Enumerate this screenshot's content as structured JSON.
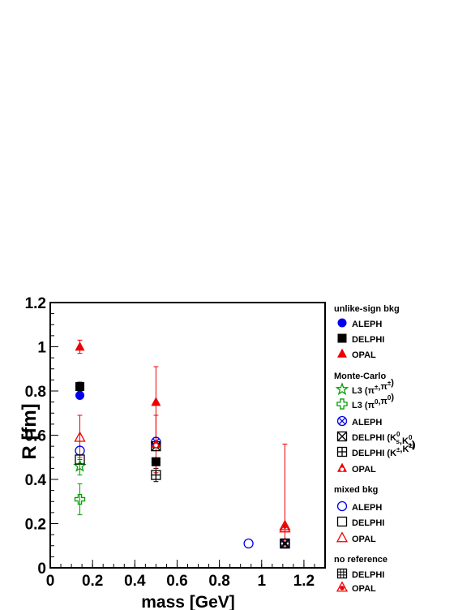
{
  "chart_data": {
    "type": "scatter",
    "title": "",
    "xlabel": "mass [GeV]",
    "ylabel": "R [fm]",
    "xlim": [
      0,
      1.3
    ],
    "ylim": [
      0,
      1.2
    ],
    "x_ticks": [
      {
        "value": 0,
        "label": "0"
      },
      {
        "value": 0.2,
        "label": "0.2"
      },
      {
        "value": 0.4,
        "label": "0.4"
      },
      {
        "value": 0.6,
        "label": "0.6"
      },
      {
        "value": 0.8,
        "label": "0.8"
      },
      {
        "value": 1.0,
        "label": "1"
      },
      {
        "value": 1.2,
        "label": "1.2"
      }
    ],
    "y_ticks": [
      {
        "value": 0,
        "label": "0"
      },
      {
        "value": 0.2,
        "label": "0.2"
      },
      {
        "value": 0.4,
        "label": "0.4"
      },
      {
        "value": 0.6,
        "label": "0.6"
      },
      {
        "value": 0.8,
        "label": "0.8"
      },
      {
        "value": 1.0,
        "label": "1"
      },
      {
        "value": 1.2,
        "label": "1.2"
      }
    ],
    "grid": false,
    "legend_position": "right",
    "legend_groups": [
      {
        "heading": "unlike-sign bkg",
        "entries": [
          {
            "label": "ALEPH",
            "marker": "filled-circle",
            "color": "#0000ee"
          },
          {
            "label": "DELPHI",
            "marker": "filled-square",
            "color": "#000000"
          },
          {
            "label": "OPAL",
            "marker": "filled-triangle",
            "color": "#ee0000"
          }
        ]
      },
      {
        "heading": "Monte-Carlo",
        "entries": [
          {
            "label": "L3 (π±,π±)",
            "marker": "open-star",
            "color": "#00a000"
          },
          {
            "label": "L3 (π0,π0)",
            "marker": "open-cross",
            "color": "#00a000"
          },
          {
            "label": "ALEPH",
            "marker": "circle-x",
            "color": "#0000ee"
          },
          {
            "label": "DELPHI (K0s,K0s)",
            "marker": "square-x",
            "color": "#000000"
          },
          {
            "label": "DELPHI (K±,K±)",
            "marker": "square-plus",
            "color": "#000000"
          },
          {
            "label": "OPAL",
            "marker": "triangle-circle",
            "color": "#ee0000"
          }
        ]
      },
      {
        "heading": "mixed bkg",
        "entries": [
          {
            "label": "ALEPH",
            "marker": "open-circle",
            "color": "#0000ee"
          },
          {
            "label": "DELPHI",
            "marker": "open-square",
            "color": "#000000"
          },
          {
            "label": "OPAL",
            "marker": "open-triangle",
            "color": "#ee0000"
          }
        ]
      },
      {
        "heading": "no reference",
        "entries": [
          {
            "label": "DELPHI",
            "marker": "square-hash",
            "color": "#000000"
          },
          {
            "label": "OPAL",
            "marker": "triangle-dot",
            "color": "#ee0000"
          }
        ]
      }
    ],
    "series": [
      {
        "name": "unlike-sign bkg ALEPH",
        "marker": "filled-circle",
        "color": "#0000ee",
        "points": [
          {
            "x": 0.14,
            "y": 0.78
          }
        ]
      },
      {
        "name": "unlike-sign bkg DELPHI",
        "marker": "filled-square",
        "color": "#000000",
        "points": [
          {
            "x": 0.14,
            "y": 0.82,
            "err": 0.02
          },
          {
            "x": 0.5,
            "y": 0.48
          }
        ]
      },
      {
        "name": "unlike-sign bkg OPAL",
        "marker": "filled-triangle",
        "color": "#ee0000",
        "points": [
          {
            "x": 0.14,
            "y": 1.0,
            "err": 0.03
          },
          {
            "x": 0.5,
            "y": 0.75,
            "err": 0.16
          }
        ]
      },
      {
        "name": "Monte-Carlo L3 (π±,π±)",
        "marker": "open-star",
        "color": "#00a000",
        "points": [
          {
            "x": 0.14,
            "y": 0.46,
            "err": 0.04
          }
        ]
      },
      {
        "name": "Monte-Carlo L3 (π0,π0)",
        "marker": "open-cross",
        "color": "#00a000",
        "points": [
          {
            "x": 0.14,
            "y": 0.31,
            "err": 0.07
          }
        ]
      },
      {
        "name": "Monte-Carlo ALEPH",
        "marker": "circle-x",
        "color": "#0000ee",
        "points": [
          {
            "x": 0.5,
            "y": 0.57
          },
          {
            "x": 1.11,
            "y": 0.11
          }
        ]
      },
      {
        "name": "Monte-Carlo DELPHI (K0s,K0s)",
        "marker": "square-x",
        "color": "#000000",
        "points": [
          {
            "x": 0.5,
            "y": 0.55
          },
          {
            "x": 1.11,
            "y": 0.11
          }
        ]
      },
      {
        "name": "Monte-Carlo DELPHI (K±,K±)",
        "marker": "square-plus",
        "color": "#000000",
        "points": [
          {
            "x": 0.5,
            "y": 0.42,
            "err": 0.03
          }
        ]
      },
      {
        "name": "Monte-Carlo OPAL",
        "marker": "triangle-circle",
        "color": "#ee0000",
        "points": [
          {
            "x": 0.5,
            "y": 0.56,
            "err": 0.13
          }
        ]
      },
      {
        "name": "mixed bkg ALEPH",
        "marker": "open-circle",
        "color": "#0000ee",
        "points": [
          {
            "x": 0.14,
            "y": 0.53
          },
          {
            "x": 0.938,
            "y": 0.11
          }
        ]
      },
      {
        "name": "mixed bkg DELPHI",
        "marker": "open-square",
        "color": "#000000",
        "points": [
          {
            "x": 0.14,
            "y": 0.49
          }
        ]
      },
      {
        "name": "mixed bkg OPAL",
        "marker": "open-triangle",
        "color": "#ee0000",
        "points": [
          {
            "x": 0.14,
            "y": 0.59,
            "err": 0.1
          },
          {
            "x": 1.11,
            "y": 0.18
          }
        ]
      },
      {
        "name": "no reference DELPHI",
        "marker": "square-hash",
        "color": "#000000",
        "points": [
          {
            "x": 1.11,
            "y": 0.11
          }
        ]
      },
      {
        "name": "no reference OPAL",
        "marker": "triangle-dot",
        "color": "#ee0000",
        "points": [
          {
            "x": 1.11,
            "y": 0.19,
            "err_up": 0.37,
            "err_down": 0.1
          }
        ]
      }
    ]
  }
}
